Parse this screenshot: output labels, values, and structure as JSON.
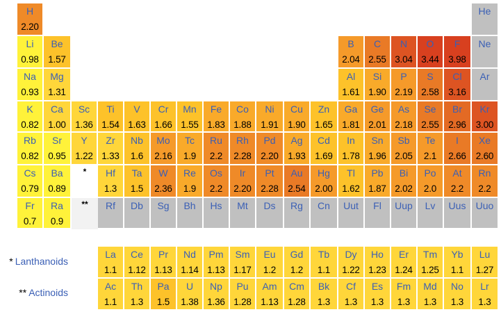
{
  "colors": {
    "c098": "#fff23a",
    "c100": "#ffd63a",
    "c150": "#fdc22a",
    "c180": "#f9aa2a",
    "c200": "#f59a2a",
    "c220": "#ef8a28",
    "c250": "#e97a26",
    "c280": "#e36a24",
    "c300": "#dd5422",
    "c330": "#d8401f",
    "none": "#c0c0c0"
  },
  "elements": [
    {
      "sym": "H",
      "en": "2.20",
      "r": 0,
      "c": 0
    },
    {
      "sym": "He",
      "en": "",
      "r": 0,
      "c": 17
    },
    {
      "sym": "Li",
      "en": "0.98",
      "r": 1,
      "c": 0
    },
    {
      "sym": "Be",
      "en": "1.57",
      "r": 1,
      "c": 1
    },
    {
      "sym": "B",
      "en": "2.04",
      "r": 1,
      "c": 12
    },
    {
      "sym": "C",
      "en": "2.55",
      "r": 1,
      "c": 13
    },
    {
      "sym": "N",
      "en": "3.04",
      "r": 1,
      "c": 14
    },
    {
      "sym": "O",
      "en": "3.44",
      "r": 1,
      "c": 15
    },
    {
      "sym": "F",
      "en": "3.98",
      "r": 1,
      "c": 16
    },
    {
      "sym": "Ne",
      "en": "",
      "r": 1,
      "c": 17
    },
    {
      "sym": "Na",
      "en": "0.93",
      "r": 2,
      "c": 0
    },
    {
      "sym": "Mg",
      "en": "1.31",
      "r": 2,
      "c": 1
    },
    {
      "sym": "Al",
      "en": "1.61",
      "r": 2,
      "c": 12
    },
    {
      "sym": "Si",
      "en": "1.90",
      "r": 2,
      "c": 13
    },
    {
      "sym": "P",
      "en": "2.19",
      "r": 2,
      "c": 14
    },
    {
      "sym": "S",
      "en": "2.58",
      "r": 2,
      "c": 15
    },
    {
      "sym": "Cl",
      "en": "3.16",
      "r": 2,
      "c": 16
    },
    {
      "sym": "Ar",
      "en": "",
      "r": 2,
      "c": 17
    },
    {
      "sym": "K",
      "en": "0.82",
      "r": 3,
      "c": 0
    },
    {
      "sym": "Ca",
      "en": "1.00",
      "r": 3,
      "c": 1
    },
    {
      "sym": "Sc",
      "en": "1.36",
      "r": 3,
      "c": 2
    },
    {
      "sym": "Ti",
      "en": "1.54",
      "r": 3,
      "c": 3
    },
    {
      "sym": "V",
      "en": "1.63",
      "r": 3,
      "c": 4
    },
    {
      "sym": "Cr",
      "en": "1.66",
      "r": 3,
      "c": 5
    },
    {
      "sym": "Mn",
      "en": "1.55",
      "r": 3,
      "c": 6
    },
    {
      "sym": "Fe",
      "en": "1.83",
      "r": 3,
      "c": 7
    },
    {
      "sym": "Co",
      "en": "1.88",
      "r": 3,
      "c": 8
    },
    {
      "sym": "Ni",
      "en": "1.91",
      "r": 3,
      "c": 9
    },
    {
      "sym": "Cu",
      "en": "1.90",
      "r": 3,
      "c": 10
    },
    {
      "sym": "Zn",
      "en": "1.65",
      "r": 3,
      "c": 11
    },
    {
      "sym": "Ga",
      "en": "1.81",
      "r": 3,
      "c": 12
    },
    {
      "sym": "Ge",
      "en": "2.01",
      "r": 3,
      "c": 13
    },
    {
      "sym": "As",
      "en": "2.18",
      "r": 3,
      "c": 14
    },
    {
      "sym": "Se",
      "en": "2.55",
      "r": 3,
      "c": 15
    },
    {
      "sym": "Br",
      "en": "2.96",
      "r": 3,
      "c": 16
    },
    {
      "sym": "Kr",
      "en": "3.00",
      "r": 3,
      "c": 17
    },
    {
      "sym": "Rb",
      "en": "0.82",
      "r": 4,
      "c": 0
    },
    {
      "sym": "Sr",
      "en": "0.95",
      "r": 4,
      "c": 1
    },
    {
      "sym": "Y",
      "en": "1.22",
      "r": 4,
      "c": 2
    },
    {
      "sym": "Zr",
      "en": "1.33",
      "r": 4,
      "c": 3
    },
    {
      "sym": "Nb",
      "en": "1.6",
      "r": 4,
      "c": 4
    },
    {
      "sym": "Mo",
      "en": "2.16",
      "r": 4,
      "c": 5
    },
    {
      "sym": "Tc",
      "en": "1.9",
      "r": 4,
      "c": 6
    },
    {
      "sym": "Ru",
      "en": "2.2",
      "r": 4,
      "c": 7
    },
    {
      "sym": "Rh",
      "en": "2.28",
      "r": 4,
      "c": 8
    },
    {
      "sym": "Pd",
      "en": "2.20",
      "r": 4,
      "c": 9
    },
    {
      "sym": "Ag",
      "en": "1.93",
      "r": 4,
      "c": 10
    },
    {
      "sym": "Cd",
      "en": "1.69",
      "r": 4,
      "c": 11
    },
    {
      "sym": "In",
      "en": "1.78",
      "r": 4,
      "c": 12
    },
    {
      "sym": "Sn",
      "en": "1.96",
      "r": 4,
      "c": 13
    },
    {
      "sym": "Sb",
      "en": "2.05",
      "r": 4,
      "c": 14
    },
    {
      "sym": "Te",
      "en": "2.1",
      "r": 4,
      "c": 15
    },
    {
      "sym": "I",
      "en": "2.66",
      "r": 4,
      "c": 16
    },
    {
      "sym": "Xe",
      "en": "2.60",
      "r": 4,
      "c": 17
    },
    {
      "sym": "Cs",
      "en": "0.79",
      "r": 5,
      "c": 0
    },
    {
      "sym": "Ba",
      "en": "0.89",
      "r": 5,
      "c": 1
    },
    {
      "sym": "Hf",
      "en": "1.3",
      "r": 5,
      "c": 3
    },
    {
      "sym": "Ta",
      "en": "1.5",
      "r": 5,
      "c": 4
    },
    {
      "sym": "W",
      "en": "2.36",
      "r": 5,
      "c": 5
    },
    {
      "sym": "Re",
      "en": "1.9",
      "r": 5,
      "c": 6
    },
    {
      "sym": "Os",
      "en": "2.2",
      "r": 5,
      "c": 7
    },
    {
      "sym": "Ir",
      "en": "2.20",
      "r": 5,
      "c": 8
    },
    {
      "sym": "Pt",
      "en": "2.28",
      "r": 5,
      "c": 9
    },
    {
      "sym": "Au",
      "en": "2.54",
      "r": 5,
      "c": 10
    },
    {
      "sym": "Hg",
      "en": "2.00",
      "r": 5,
      "c": 11
    },
    {
      "sym": "Tl",
      "en": "1.62",
      "r": 5,
      "c": 12
    },
    {
      "sym": "Pb",
      "en": "1.87",
      "r": 5,
      "c": 13
    },
    {
      "sym": "Bi",
      "en": "2.02",
      "r": 5,
      "c": 14
    },
    {
      "sym": "Po",
      "en": "2.0",
      "r": 5,
      "c": 15
    },
    {
      "sym": "At",
      "en": "2.2",
      "r": 5,
      "c": 16
    },
    {
      "sym": "Rn",
      "en": "2.2",
      "r": 5,
      "c": 17
    },
    {
      "sym": "Fr",
      "en": "0.7",
      "r": 6,
      "c": 0
    },
    {
      "sym": "Ra",
      "en": "0.9",
      "r": 6,
      "c": 1
    },
    {
      "sym": "Rf",
      "en": "",
      "r": 6,
      "c": 3
    },
    {
      "sym": "Db",
      "en": "",
      "r": 6,
      "c": 4
    },
    {
      "sym": "Sg",
      "en": "",
      "r": 6,
      "c": 5
    },
    {
      "sym": "Bh",
      "en": "",
      "r": 6,
      "c": 6
    },
    {
      "sym": "Hs",
      "en": "",
      "r": 6,
      "c": 7
    },
    {
      "sym": "Mt",
      "en": "",
      "r": 6,
      "c": 8
    },
    {
      "sym": "Ds",
      "en": "",
      "r": 6,
      "c": 9
    },
    {
      "sym": "Rg",
      "en": "",
      "r": 6,
      "c": 10
    },
    {
      "sym": "Cn",
      "en": "",
      "r": 6,
      "c": 11
    },
    {
      "sym": "Uut",
      "en": "",
      "r": 6,
      "c": 12
    },
    {
      "sym": "Fl",
      "en": "",
      "r": 6,
      "c": 13
    },
    {
      "sym": "Uup",
      "en": "",
      "r": 6,
      "c": 14
    },
    {
      "sym": "Lv",
      "en": "",
      "r": 6,
      "c": 15
    },
    {
      "sym": "Uus",
      "en": "",
      "r": 6,
      "c": 16
    },
    {
      "sym": "Uuo",
      "en": "",
      "r": 6,
      "c": 17
    },
    {
      "sym": "La",
      "en": "1.1",
      "r": 7,
      "c": 3
    },
    {
      "sym": "Ce",
      "en": "1.12",
      "r": 7,
      "c": 4
    },
    {
      "sym": "Pr",
      "en": "1.13",
      "r": 7,
      "c": 5
    },
    {
      "sym": "Nd",
      "en": "1.14",
      "r": 7,
      "c": 6
    },
    {
      "sym": "Pm",
      "en": "1.13",
      "r": 7,
      "c": 7
    },
    {
      "sym": "Sm",
      "en": "1.17",
      "r": 7,
      "c": 8
    },
    {
      "sym": "Eu",
      "en": "1.2",
      "r": 7,
      "c": 9
    },
    {
      "sym": "Gd",
      "en": "1.2",
      "r": 7,
      "c": 10
    },
    {
      "sym": "Tb",
      "en": "1.1",
      "r": 7,
      "c": 11
    },
    {
      "sym": "Dy",
      "en": "1.22",
      "r": 7,
      "c": 12
    },
    {
      "sym": "Ho",
      "en": "1.23",
      "r": 7,
      "c": 13
    },
    {
      "sym": "Er",
      "en": "1.24",
      "r": 7,
      "c": 14
    },
    {
      "sym": "Tm",
      "en": "1.25",
      "r": 7,
      "c": 15
    },
    {
      "sym": "Yb",
      "en": "1.1",
      "r": 7,
      "c": 16
    },
    {
      "sym": "Lu",
      "en": "1.27",
      "r": 7,
      "c": 17
    },
    {
      "sym": "Ac",
      "en": "1.1",
      "r": 8,
      "c": 3
    },
    {
      "sym": "Th",
      "en": "1.3",
      "r": 8,
      "c": 4
    },
    {
      "sym": "Pa",
      "en": "1.5",
      "r": 8,
      "c": 5
    },
    {
      "sym": "U",
      "en": "1.38",
      "r": 8,
      "c": 6
    },
    {
      "sym": "Np",
      "en": "1.36",
      "r": 8,
      "c": 7
    },
    {
      "sym": "Pu",
      "en": "1.28",
      "r": 8,
      "c": 8
    },
    {
      "sym": "Am",
      "en": "1.13",
      "r": 8,
      "c": 9
    },
    {
      "sym": "Cm",
      "en": "1.28",
      "r": 8,
      "c": 10
    },
    {
      "sym": "Bk",
      "en": "1.3",
      "r": 8,
      "c": 11
    },
    {
      "sym": "Cf",
      "en": "1.3",
      "r": 8,
      "c": 12
    },
    {
      "sym": "Es",
      "en": "1.3",
      "r": 8,
      "c": 13
    },
    {
      "sym": "Fm",
      "en": "1.3",
      "r": 8,
      "c": 14
    },
    {
      "sym": "Md",
      "en": "1.3",
      "r": 8,
      "c": 15
    },
    {
      "sym": "No",
      "en": "1.3",
      "r": 8,
      "c": 16
    },
    {
      "sym": "Lr",
      "en": "1.3",
      "r": 8,
      "c": 17
    }
  ],
  "markers": {
    "lanthanoid_marker": "*",
    "actinoid_marker": "**"
  },
  "series_labels": {
    "lanthanoids_stars": "*",
    "lanthanoids": "Lanthanoids",
    "actinoids_stars": "**",
    "actinoids": "Actinoids"
  }
}
